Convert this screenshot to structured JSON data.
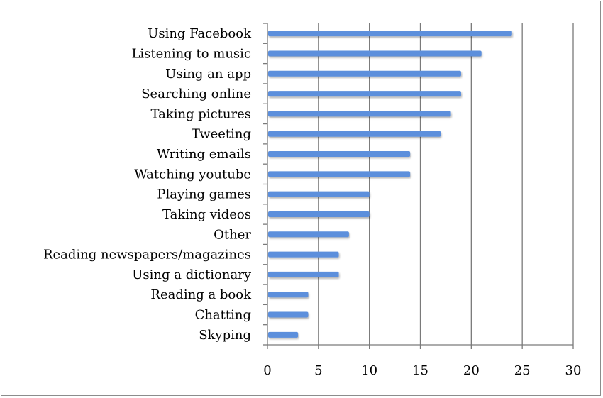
{
  "chart_data": {
    "type": "bar",
    "orientation": "horizontal",
    "title": "",
    "xlabel": "",
    "ylabel": "",
    "categories": [
      "Using Facebook",
      "Listening to music",
      "Using an app",
      "Searching online",
      "Taking pictures",
      "Tweeting",
      "Writing emails",
      "Watching youtube",
      "Playing games",
      "Taking videos",
      "Other",
      "Reading newspapers/magazines",
      "Using a dictionary",
      "Reading a book",
      "Chatting",
      "Skyping"
    ],
    "values": [
      24,
      21,
      19,
      19,
      18,
      17,
      14,
      14,
      10,
      10,
      8,
      7,
      7,
      4,
      4,
      3
    ],
    "xlim": [
      0,
      30
    ],
    "xticks": [
      "0",
      "5",
      "10",
      "15",
      "20",
      "25",
      "30"
    ],
    "grid": true,
    "legend": "none",
    "bar_color": "#5b8fdc"
  }
}
